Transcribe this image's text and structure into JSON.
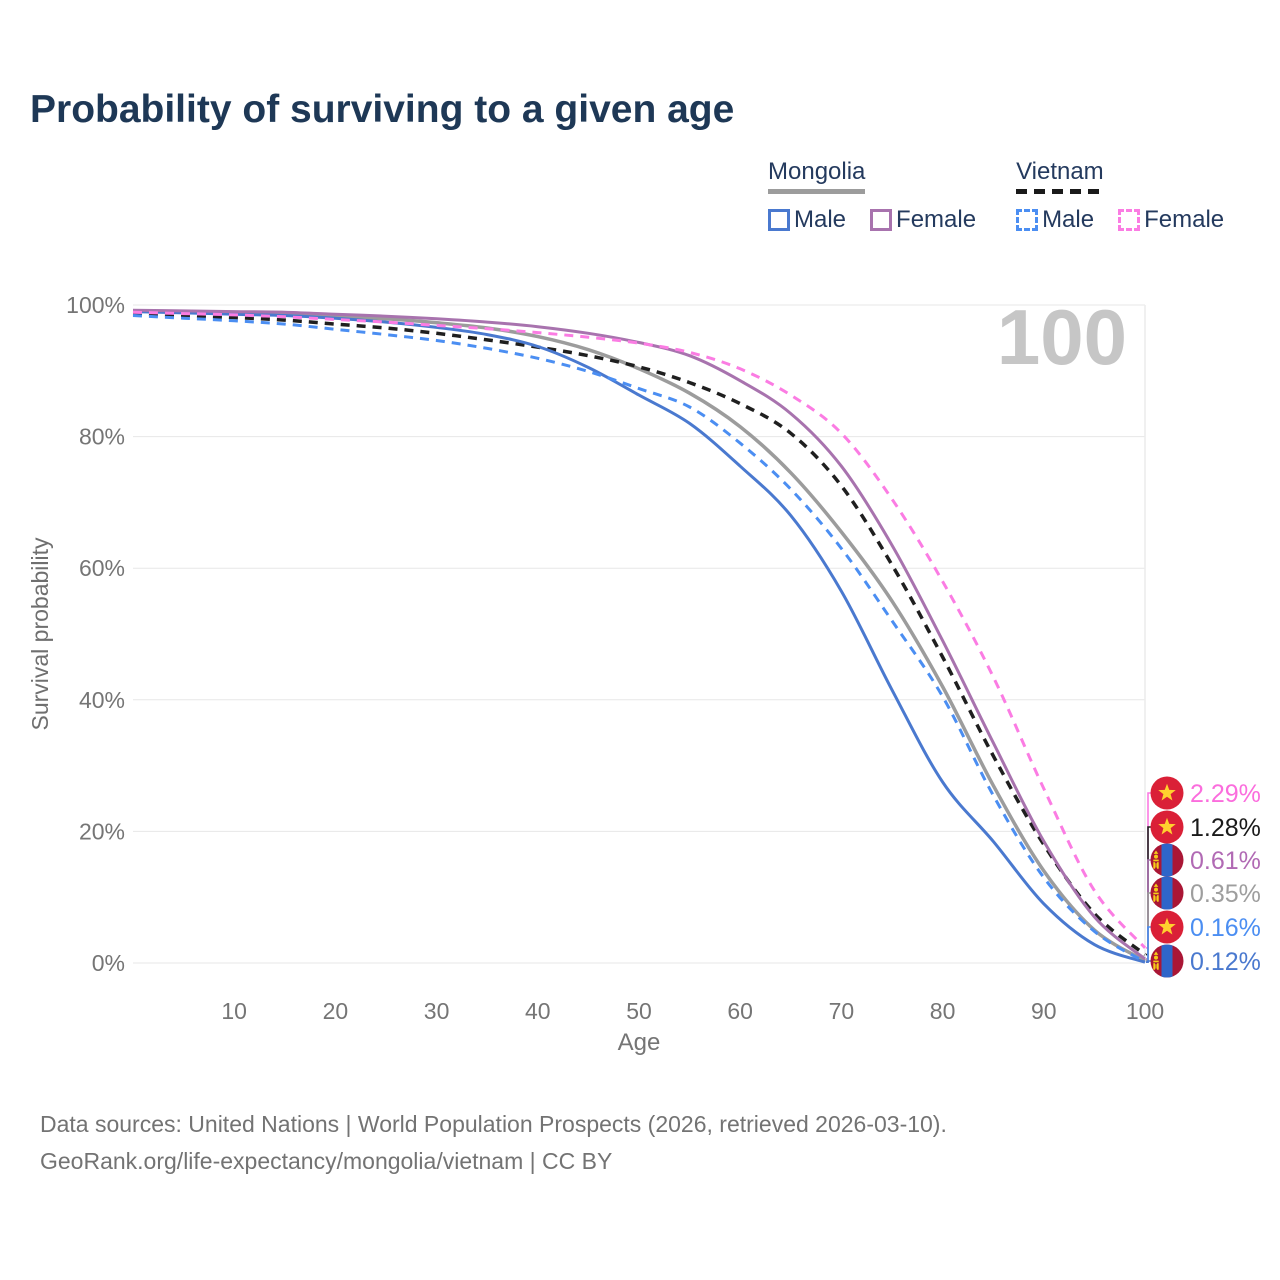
{
  "title": "Probability of surviving to a given age",
  "watermark_age": "100",
  "legend": {
    "groups": [
      {
        "country": "Mongolia",
        "line_style": "solid",
        "line_color": "#9c9c9c",
        "items": [
          {
            "label": "Male",
            "color": "#4a79cf"
          },
          {
            "label": "Female",
            "color": "#a873ae"
          }
        ]
      },
      {
        "country": "Vietnam",
        "line_style": "dashed",
        "line_color": "#1f1f1f",
        "items": [
          {
            "label": "Male",
            "color": "#4b8ef2"
          },
          {
            "label": "Female",
            "color": "#fb7ce3"
          }
        ]
      }
    ]
  },
  "footer": {
    "line1": "Data sources: United Nations | World Population Prospects (2026, retrieved 2026-03-10).",
    "line2": "GeoRank.org/life-expectancy/mongolia/vietnam | CC BY"
  },
  "chart_data": {
    "type": "line",
    "title": "Probability of surviving to a given age",
    "xlabel": "Age",
    "ylabel": "Survival probability",
    "xlim": [
      0,
      100
    ],
    "ylim": [
      0,
      100
    ],
    "grid": "horizontal",
    "legend_position": "top-right",
    "hover_age": 100,
    "x_ticks": [
      10,
      20,
      30,
      40,
      50,
      60,
      70,
      80,
      90,
      100
    ],
    "y_ticks": [
      {
        "value": 0,
        "label": "0%"
      },
      {
        "value": 20,
        "label": "20%"
      },
      {
        "value": 40,
        "label": "40%"
      },
      {
        "value": 60,
        "label": "60%"
      },
      {
        "value": 80,
        "label": "80%"
      },
      {
        "value": 100,
        "label": "100%"
      }
    ],
    "x": [
      0,
      5,
      10,
      15,
      20,
      25,
      30,
      35,
      40,
      45,
      50,
      55,
      60,
      65,
      70,
      75,
      80,
      85,
      90,
      95,
      100
    ],
    "series": [
      {
        "name": "Mongolia Total",
        "country": "Mongolia",
        "sex": "both",
        "color": "#9c9c9c",
        "dash": false,
        "width": 3.5,
        "flag": "mn",
        "end_label": "0.35%",
        "label_color": "#9e9e9e",
        "values": [
          99.1,
          99.0,
          98.8,
          98.6,
          98.3,
          97.9,
          97.3,
          96.5,
          95.2,
          93.2,
          90.3,
          86.6,
          81.5,
          74.5,
          65.5,
          55.0,
          42.0,
          27.0,
          14.0,
          5.0,
          0.35
        ]
      },
      {
        "name": "Vietnam Total",
        "country": "Vietnam",
        "sex": "both",
        "color": "#1f1f1f",
        "dash": true,
        "width": 3.5,
        "flag": "vn",
        "end_label": "1.28%",
        "label_color": "#1a1a1a",
        "values": [
          98.7,
          98.4,
          98.1,
          97.7,
          97.1,
          96.5,
          95.7,
          94.7,
          93.6,
          92.3,
          90.6,
          88.2,
          85.0,
          80.5,
          72.5,
          60.5,
          46.5,
          31.5,
          18.0,
          7.5,
          1.28
        ]
      },
      {
        "name": "Mongolia Male",
        "country": "Mongolia",
        "sex": "male",
        "color": "#4a79cf",
        "dash": false,
        "width": 3,
        "flag": "mn",
        "end_label": "0.12%",
        "label_color": "#4a79cf",
        "values": [
          99.0,
          98.8,
          98.6,
          98.4,
          98.0,
          97.4,
          96.6,
          95.5,
          93.7,
          90.5,
          86.3,
          82.0,
          75.5,
          68.0,
          56.5,
          41.5,
          27.5,
          18.5,
          9.0,
          2.8,
          0.12
        ]
      },
      {
        "name": "Mongolia Female",
        "country": "Mongolia",
        "sex": "female",
        "color": "#a873ae",
        "dash": false,
        "width": 3,
        "flag": "mn",
        "end_label": "0.61%",
        "label_color": "#b16ab4",
        "values": [
          99.2,
          99.1,
          99.0,
          98.9,
          98.6,
          98.3,
          97.9,
          97.4,
          96.7,
          95.7,
          94.3,
          92.3,
          88.5,
          83.5,
          75.5,
          63.5,
          49.0,
          33.5,
          18.5,
          7.0,
          0.61
        ]
      },
      {
        "name": "Vietnam Male",
        "country": "Vietnam",
        "sex": "male",
        "color": "#4b8ef2",
        "dash": true,
        "width": 3,
        "flag": "vn",
        "end_label": "0.16%",
        "label_color": "#4b8ef2",
        "values": [
          98.4,
          98.0,
          97.6,
          97.1,
          96.3,
          95.5,
          94.6,
          93.4,
          91.9,
          89.9,
          87.3,
          84.5,
          79.0,
          72.0,
          63.0,
          52.0,
          40.5,
          25.5,
          13.0,
          4.8,
          0.16
        ]
      },
      {
        "name": "Vietnam Female",
        "country": "Vietnam",
        "sex": "female",
        "color": "#fb7ce3",
        "dash": true,
        "width": 3,
        "flag": "vn",
        "end_label": "2.29%",
        "label_color": "#fb6ddd",
        "values": [
          98.9,
          98.7,
          98.5,
          98.2,
          97.8,
          97.4,
          96.9,
          96.4,
          95.8,
          95.1,
          94.2,
          92.8,
          90.3,
          86.3,
          80.5,
          70.5,
          58.0,
          43.5,
          26.5,
          11.0,
          2.29
        ]
      }
    ]
  }
}
